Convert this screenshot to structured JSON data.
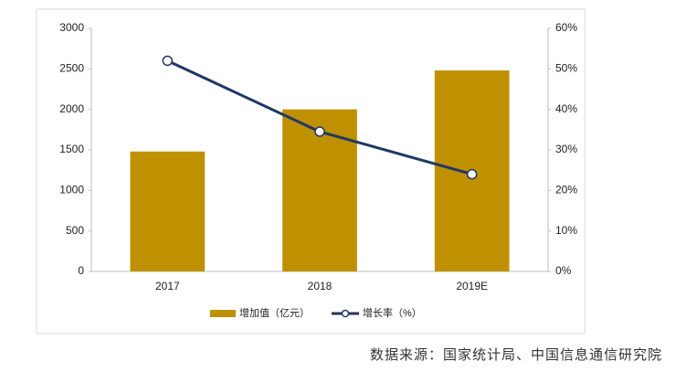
{
  "chart_data": {
    "type": "bar",
    "categories": [
      "2017",
      "2018",
      "2019E"
    ],
    "series": [
      {
        "name": "增加值（亿元）",
        "color": "#bf9000",
        "values": [
          1480,
          2000,
          2480
        ]
      },
      {
        "name": "增长率（%）",
        "type": "line",
        "axis": "y2",
        "color": "#1f3864",
        "values": [
          52,
          34.5,
          24
        ]
      }
    ],
    "ylim": [
      0,
      3000
    ],
    "yticks": [
      0,
      500,
      1000,
      1500,
      2000,
      2500,
      3000
    ],
    "y2lim": [
      0,
      60
    ],
    "y2ticks": [
      {
        "value": 0,
        "label": "0%"
      },
      {
        "value": 10,
        "label": "10%"
      },
      {
        "value": 20,
        "label": "20%"
      },
      {
        "value": 30,
        "label": "30%"
      },
      {
        "value": 40,
        "label": "40%"
      },
      {
        "value": 50,
        "label": "50%"
      },
      {
        "value": 60,
        "label": "60%"
      }
    ],
    "legend": "bottom",
    "source": "数据来源：国家统计局、中国信息通信研究院"
  }
}
